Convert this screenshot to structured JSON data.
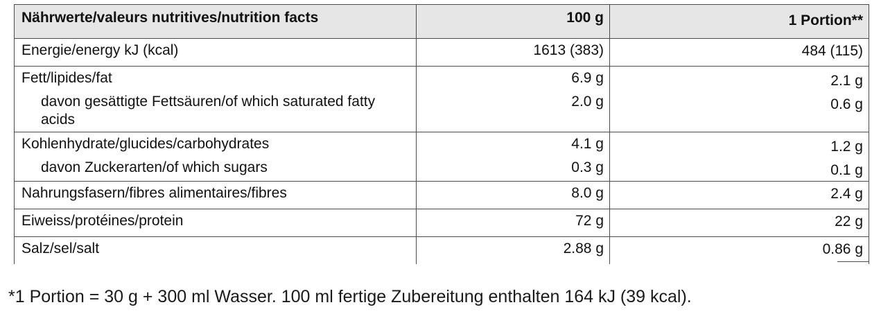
{
  "table": {
    "headers": {
      "nutrient": "Nährwerte/valeurs nutritives/nutrition facts",
      "per_100g": "100 g",
      "per_portion": "1 Portion**"
    },
    "rows": [
      {
        "label": "Energie/energy kJ (kcal)",
        "per_100g": "1613 (383)",
        "per_portion": "484 (115)"
      },
      {
        "label": "Fett/lipides/fat",
        "per_100g": "6.9 g",
        "per_portion": "2.1 g"
      },
      {
        "label": "davon gesättigte Fettsäuren/of which saturated fatty acids",
        "per_100g": "2.0 g",
        "per_portion": "0.6 g"
      },
      {
        "label": "Kohlenhydrate/glucides/carbohydrates",
        "per_100g": "4.1 g",
        "per_portion": "1.2 g"
      },
      {
        "label": "davon Zuckerarten/of which sugars",
        "per_100g": "0.3 g",
        "per_portion": "0.1 g"
      },
      {
        "label": "Nahrungsfasern/fibres alimentaires/fibres",
        "per_100g": "8.0 g",
        "per_portion": "2.4 g"
      },
      {
        "label": "Eiweiss/protéines/protein",
        "per_100g": "72 g",
        "per_portion": "22 g"
      },
      {
        "label": "Salz/sel/salt",
        "per_100g": "2.88 g",
        "per_portion": "0.86 g"
      }
    ]
  },
  "footnote": "*1 Portion = 30 g + 300 ml Wasser. 100 ml fertige Zubereitung enthalten 164 kJ (39 kcal)."
}
